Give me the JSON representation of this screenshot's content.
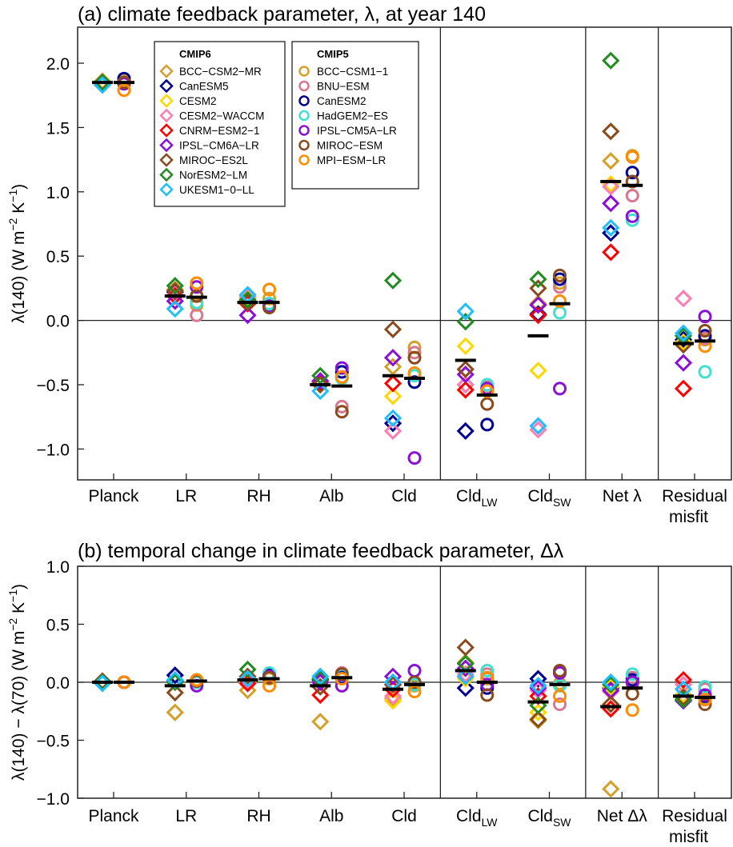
{
  "chart_data": [
    {
      "type": "scatter",
      "panel": "a",
      "title": "(a) climate feedback parameter, λ, at year 140",
      "ylabel": "λ(140) (W m⁻² K⁻¹)",
      "ylabel_parts": {
        "main": "λ(140) (W m",
        "sup1": "−2",
        "mid": " K",
        "sup2": "−1",
        "end": ")"
      },
      "ylim": [
        -1.24,
        2.28
      ],
      "yticks": [
        2.0,
        1.5,
        1.0,
        0.5,
        0.0,
        -0.5,
        -1.0
      ],
      "ytick_labels": [
        "2.0",
        "1.5",
        "1.0",
        "0.5",
        "0.0",
        "−0.5",
        "−1.0"
      ],
      "categories": [
        {
          "label": "Planck"
        },
        {
          "label": "LR"
        },
        {
          "label": "RH"
        },
        {
          "label": "Alb"
        },
        {
          "label": "Cld"
        },
        {
          "label": "Cld",
          "sub": "LW"
        },
        {
          "label": "Cld",
          "sub": "SW"
        },
        {
          "label": "Net λ"
        },
        {
          "label": "Residual",
          "line2": "misfit"
        }
      ],
      "dividers_after": [
        5,
        7,
        8
      ],
      "zero_line": true,
      "cmip6": [
        [
          1.86,
          0.24,
          0.17,
          -0.48,
          -0.36,
          -0.5,
          0.13,
          1.24,
          -0.17
        ],
        [
          1.85,
          0.22,
          0.15,
          -0.49,
          -0.8,
          -0.86,
          0.05,
          0.68,
          -0.15
        ],
        [
          1.85,
          0.2,
          0.18,
          -0.5,
          -0.59,
          -0.2,
          -0.39,
          1.06,
          -0.17
        ],
        [
          1.85,
          0.2,
          0.19,
          -0.48,
          -0.86,
          -0.5,
          -0.85,
          1.04,
          0.17
        ],
        [
          1.85,
          0.19,
          0.13,
          -0.49,
          -0.49,
          -0.54,
          0.04,
          0.53,
          -0.53
        ],
        [
          1.85,
          0.15,
          0.04,
          -0.47,
          -0.29,
          -0.42,
          0.12,
          0.91,
          -0.33
        ],
        [
          1.85,
          0.23,
          0.14,
          -0.5,
          -0.07,
          -0.38,
          0.25,
          1.47,
          -0.19
        ],
        [
          1.85,
          0.27,
          0.16,
          -0.43,
          0.31,
          -0.01,
          0.32,
          2.02,
          -0.12
        ],
        [
          1.83,
          0.09,
          0.2,
          -0.55,
          -0.76,
          0.07,
          -0.82,
          0.72,
          -0.1
        ]
      ],
      "cmip5": [
        [
          1.86,
          0.12,
          0.17,
          -0.44,
          -0.21,
          -0.53,
          0.29,
          1.28,
          -0.15
        ],
        [
          1.85,
          0.04,
          0.12,
          -0.67,
          -0.25,
          -0.52,
          0.26,
          0.97,
          -0.14
        ],
        [
          1.88,
          0.19,
          0.13,
          -0.4,
          -0.48,
          -0.81,
          0.32,
          1.15,
          -0.12
        ],
        [
          1.85,
          0.14,
          0.13,
          -0.45,
          -0.43,
          -0.5,
          0.06,
          0.78,
          -0.4
        ],
        [
          1.84,
          0.26,
          0.11,
          -0.37,
          -1.07,
          -0.53,
          -0.53,
          0.81,
          0.03
        ],
        [
          1.85,
          0.19,
          0.1,
          -0.71,
          -0.29,
          -0.65,
          0.35,
          1.08,
          -0.08
        ],
        [
          1.79,
          0.29,
          0.24,
          -0.44,
          -0.41,
          -0.55,
          0.15,
          1.27,
          -0.2
        ]
      ],
      "cmip6_mean": [
        1.85,
        0.19,
        0.14,
        -0.5,
        -0.43,
        -0.31,
        -0.12,
        1.08,
        -0.18
      ],
      "cmip5_mean": [
        1.85,
        0.18,
        0.14,
        -0.51,
        -0.45,
        -0.58,
        0.13,
        1.05,
        -0.16
      ]
    },
    {
      "type": "scatter",
      "panel": "b",
      "title": "(b) temporal change in climate feedback parameter, Δλ",
      "ylabel_parts": {
        "main": "λ(140) − λ(70) (W m",
        "sup1": "−2",
        "mid": " K",
        "sup2": "−1",
        "end": ")"
      },
      "ylim": [
        -1.0,
        1.0
      ],
      "yticks": [
        1.0,
        0.5,
        0.0,
        -0.5,
        -1.0
      ],
      "ytick_labels": [
        "1.0",
        "0.5",
        "0.0",
        "−0.5",
        "−1.0"
      ],
      "categories": [
        {
          "label": "Planck"
        },
        {
          "label": "LR"
        },
        {
          "label": "RH"
        },
        {
          "label": "Alb"
        },
        {
          "label": "Cld"
        },
        {
          "label": "Cld",
          "sub": "LW"
        },
        {
          "label": "Cld",
          "sub": "SW"
        },
        {
          "label": "Net Δλ"
        },
        {
          "label": "Residual",
          "line2": "misfit"
        }
      ],
      "dividers_after": [
        5,
        7,
        8
      ],
      "zero_line": true,
      "cmip6": [
        [
          0.0,
          -0.26,
          -0.07,
          -0.34,
          -0.14,
          0.17,
          -0.33,
          -0.92,
          -0.12
        ],
        [
          0.0,
          0.06,
          0.03,
          0.02,
          -0.02,
          -0.05,
          0.03,
          -0.05,
          -0.11
        ],
        [
          0.0,
          0.0,
          0.0,
          0.0,
          -0.16,
          0.03,
          -0.26,
          -0.04,
          -0.11
        ],
        [
          0.0,
          0.02,
          0.02,
          0.0,
          -0.12,
          0.07,
          -0.07,
          -0.08,
          -0.02
        ],
        [
          0.0,
          0.01,
          -0.01,
          -0.11,
          -0.06,
          0.05,
          -0.12,
          -0.23,
          0.02
        ],
        [
          0.0,
          0.01,
          0.03,
          0.0,
          0.05,
          0.12,
          -0.05,
          -0.07,
          -0.16
        ],
        [
          0.01,
          -0.09,
          0.05,
          -0.04,
          -0.02,
          0.3,
          -0.32,
          -0.19,
          -0.13
        ],
        [
          0.0,
          0.0,
          0.11,
          0.03,
          0.0,
          0.16,
          -0.2,
          -0.02,
          -0.15
        ],
        [
          -0.01,
          0.02,
          0.03,
          0.05,
          0.0,
          0.05,
          -0.03,
          0.0,
          -0.06
        ]
      ],
      "cmip5": [
        [
          0.0,
          0.02,
          0.03,
          0.04,
          -0.03,
          0.03,
          -0.01,
          -0.01,
          -0.14
        ],
        [
          0.0,
          0.0,
          0.06,
          0.08,
          -0.01,
          0.07,
          -0.19,
          0.04,
          -0.06
        ],
        [
          0.0,
          0.0,
          0.07,
          0.05,
          0.0,
          -0.05,
          0.09,
          0.02,
          -0.12
        ],
        [
          0.0,
          0.0,
          0.08,
          0.06,
          -0.02,
          0.1,
          -0.03,
          0.07,
          -0.04
        ],
        [
          0.0,
          -0.03,
          0.05,
          -0.03,
          0.1,
          -0.02,
          0.08,
          0.0,
          -0.11
        ],
        [
          0.0,
          0.01,
          0.04,
          0.07,
          0.0,
          -0.11,
          0.1,
          -0.1,
          -0.19
        ],
        [
          0.0,
          0.02,
          -0.03,
          0.03,
          -0.08,
          0.04,
          -0.12,
          -0.24,
          -0.15
        ]
      ],
      "cmip6_mean": [
        0.0,
        -0.03,
        0.02,
        -0.03,
        -0.06,
        0.1,
        -0.17,
        -0.21,
        -0.12
      ],
      "cmip5_mean": [
        0.0,
        0.01,
        0.03,
        0.04,
        -0.02,
        0.0,
        -0.02,
        -0.05,
        -0.13
      ]
    }
  ],
  "legend": {
    "cmip6": {
      "title": "CMIP6",
      "marker": "diamond",
      "models": [
        {
          "name": "BCC−CSM2−MR",
          "color": "#D4A02A"
        },
        {
          "name": "CanESM5",
          "color": "#000090"
        },
        {
          "name": "CESM2",
          "color": "#FFD700"
        },
        {
          "name": "CESM2−WACCM",
          "color": "#FF7DB4"
        },
        {
          "name": "CNRM−ESM2−1",
          "color": "#FF0000"
        },
        {
          "name": "IPSL−CM6A−LR",
          "color": "#8B10D6"
        },
        {
          "name": "MIROC−ES2L",
          "color": "#8B4A1C"
        },
        {
          "name": "NorESM2−LM",
          "color": "#228B22"
        },
        {
          "name": "UKESM1−0−LL",
          "color": "#1EBEFF"
        }
      ]
    },
    "cmip5": {
      "title": "CMIP5",
      "marker": "circle",
      "models": [
        {
          "name": "BCC−CSM1−1",
          "color": "#D4A02A"
        },
        {
          "name": "BNU−ESM",
          "color": "#D8768F"
        },
        {
          "name": "CanESM2",
          "color": "#000090"
        },
        {
          "name": "HadGEM2−ES",
          "color": "#40E0D0"
        },
        {
          "name": "IPSL−CM5A−LR",
          "color": "#8B10D6"
        },
        {
          "name": "MIROC−ESM",
          "color": "#8B4A1C"
        },
        {
          "name": "MPI−ESM−LR",
          "color": "#FF8C00"
        }
      ]
    }
  }
}
